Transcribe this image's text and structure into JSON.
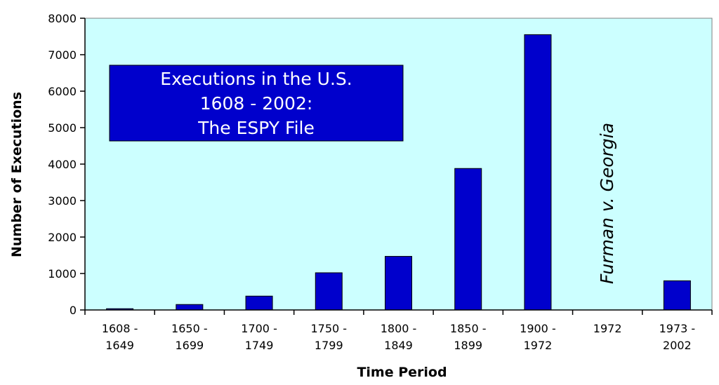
{
  "chart_data": {
    "type": "bar",
    "title_lines": [
      "Executions in the U.S.",
      "1608 - 2002:",
      "The ESPY File"
    ],
    "xlabel": "Time Period",
    "ylabel": "Number of Executions",
    "ylim": [
      0,
      8000
    ],
    "yticks": [
      0,
      1000,
      2000,
      3000,
      4000,
      5000,
      6000,
      7000,
      8000
    ],
    "categories": [
      [
        "1608 -",
        "1649"
      ],
      [
        "1650 -",
        "1699"
      ],
      [
        "1700 -",
        "1749"
      ],
      [
        "1750 -",
        "1799"
      ],
      [
        "1800 -",
        "1849"
      ],
      [
        "1850 -",
        "1899"
      ],
      [
        "1900 -",
        "1972"
      ],
      [
        "1972"
      ],
      [
        "1973 -",
        "2002"
      ]
    ],
    "values": [
      35,
      150,
      380,
      1020,
      1470,
      3880,
      7550,
      0,
      800
    ],
    "annotation": {
      "text": "Furman v. Georgia",
      "category_index": 7
    },
    "plot_background": "#ccffff",
    "bar_color": "#0000cc",
    "title_box_color": "#0000cc",
    "grid": false,
    "legend": "none"
  }
}
